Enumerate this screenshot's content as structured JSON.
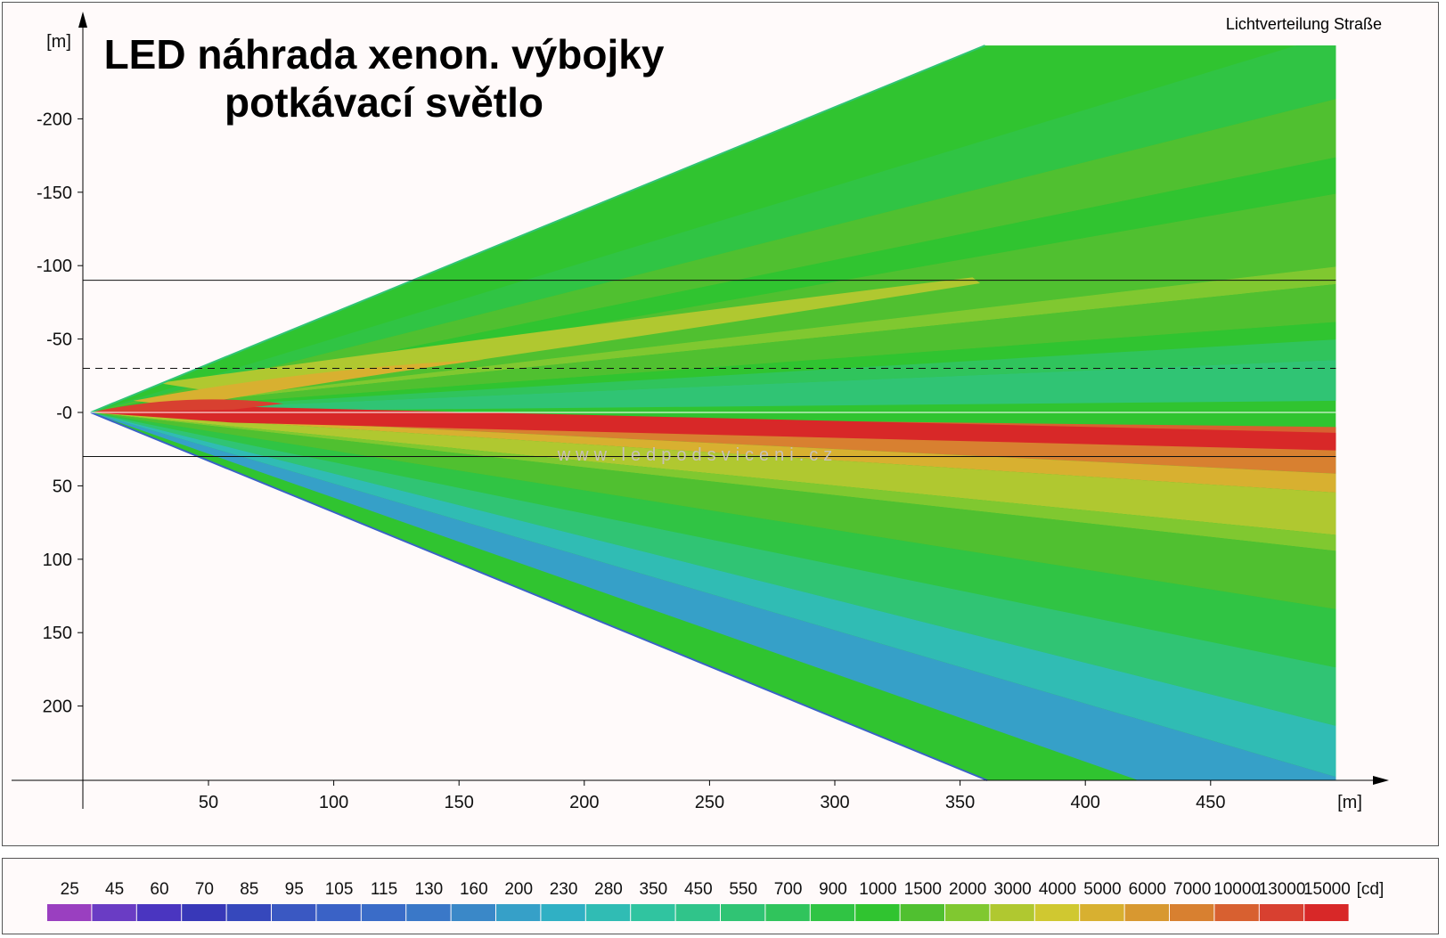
{
  "chart_data": {
    "type": "heatmap",
    "title_lines": [
      "LED náhrada xenon. výbojky",
      "potkávací světlo"
    ],
    "subtitle": "Lichtverteilung Straße",
    "watermark": "www.ledpodsviceni.cz",
    "x_unit": "[m]",
    "y_unit": "[m]",
    "x_ticks": [
      50,
      100,
      150,
      200,
      250,
      300,
      350,
      400,
      450
    ],
    "y_ticks": [
      -200,
      -150,
      -100,
      -50,
      0,
      50,
      100,
      150,
      200
    ],
    "y_tick_labels": [
      "-200",
      "-150",
      "-100",
      "-50",
      "-0",
      "50",
      "100",
      "150",
      "200"
    ],
    "xlim": [
      -29,
      500
    ],
    "ylim": [
      -253,
      250
    ],
    "reference_lines": [
      {
        "y": -90,
        "style": "solid"
      },
      {
        "y": -30,
        "style": "dashed"
      },
      {
        "y": 0,
        "style": "solid",
        "color": "#ffffff"
      },
      {
        "y": 30,
        "style": "solid"
      }
    ],
    "beam_origin": [
      3,
      0
    ],
    "beam_edges_at_x": {
      "x": 360,
      "y_top": -250,
      "y_bottom": 250
    },
    "illuminated_area_end_x": 500,
    "contour_levels_cd": [
      "25",
      "45",
      "60",
      "70",
      "85",
      "95",
      "105",
      "115",
      "130",
      "160",
      "200",
      "230",
      "280",
      "350",
      "450",
      "550",
      "700",
      "900",
      "1000",
      "1500",
      "2000",
      "3000",
      "4000",
      "5000",
      "6000",
      "7000",
      "10000",
      "13000",
      "15000"
    ],
    "level_unit": "[cd]",
    "level_colors": [
      "#9a3fc0",
      "#6a3cc4",
      "#4a35c0",
      "#3838b8",
      "#3648bc",
      "#3a58c2",
      "#3a62c6",
      "#3a6cc8",
      "#3a78c8",
      "#3a88c8",
      "#36a0c8",
      "#30b0c4",
      "#30bcb4",
      "#30c4a0",
      "#30c48a",
      "#30c474",
      "#30c45c",
      "#30c444",
      "#30c430",
      "#50c030",
      "#80c830",
      "#b0c830",
      "#d0c830",
      "#d8b030",
      "#d89830",
      "#d88030",
      "#d86030",
      "#d84030",
      "#d82828"
    ]
  }
}
